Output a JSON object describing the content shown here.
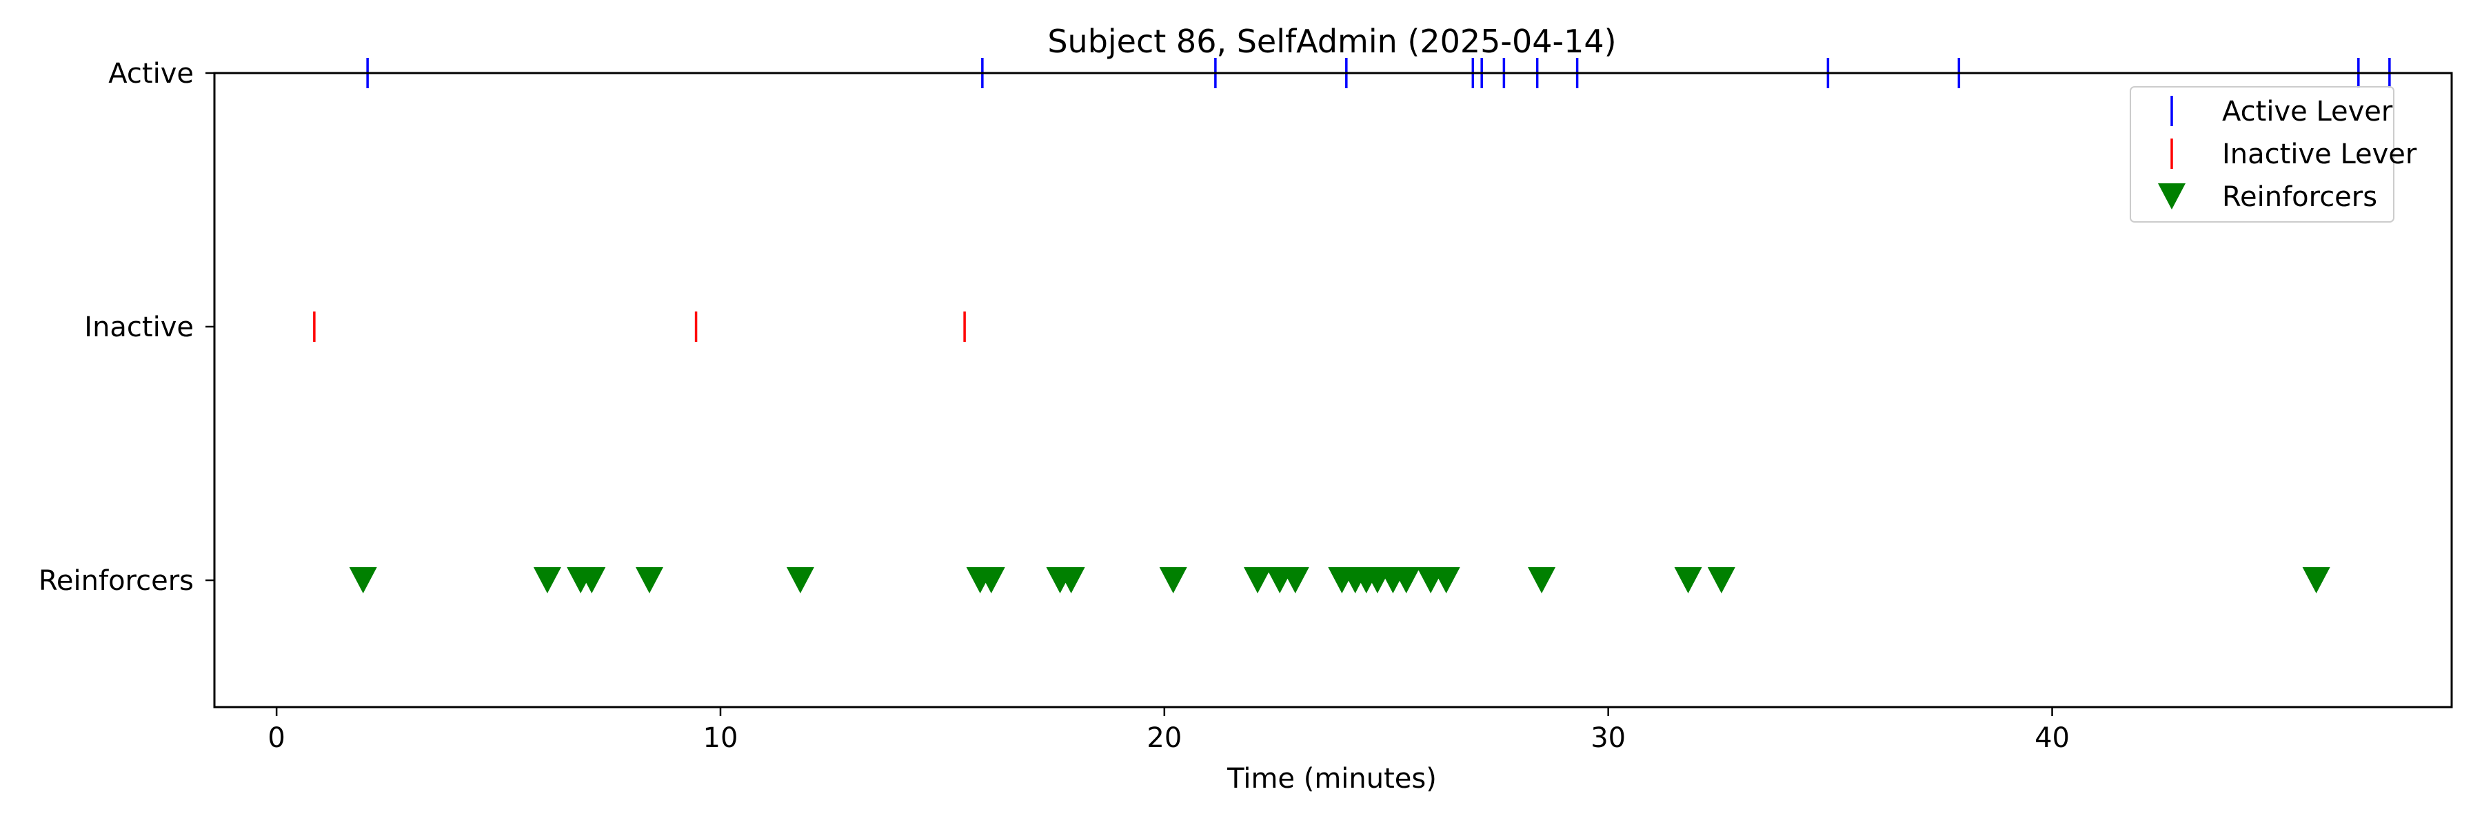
{
  "chart_data": {
    "type": "scatter",
    "title": "Subject 86, SelfAdmin (2025-04-14)",
    "xlabel": "Time (minutes)",
    "ylabel": "",
    "xlim": [
      -1.4,
      49.0
    ],
    "xticks": [
      0,
      10,
      20,
      30,
      40
    ],
    "ylim": [
      -0.5,
      2.0
    ],
    "categories": [
      "Reinforcers",
      "Inactive",
      "Active"
    ],
    "grid": false,
    "legend_position": "top-right",
    "series": [
      {
        "name": "Active Lever",
        "row": "Active",
        "marker": "vline",
        "color": "#0000ff",
        "x": [
          2.05,
          15.9,
          21.15,
          24.1,
          26.95,
          27.15,
          27.65,
          28.4,
          29.3,
          34.95,
          37.9,
          46.9,
          47.6
        ]
      },
      {
        "name": "Inactive Lever",
        "row": "Inactive",
        "marker": "vline",
        "color": "#ff0000",
        "x": [
          0.85,
          9.45,
          15.5
        ]
      },
      {
        "name": "Reinforcers",
        "row": "Reinforcers",
        "marker": "triangle-down",
        "color": "#008000",
        "x": [
          1.95,
          6.1,
          6.85,
          7.1,
          8.4,
          11.8,
          15.85,
          16.1,
          17.65,
          17.9,
          20.2,
          22.1,
          22.6,
          22.95,
          24.0,
          24.3,
          24.55,
          24.8,
          25.15,
          25.45,
          26.0,
          26.35,
          28.5,
          31.8,
          32.55,
          45.95
        ]
      }
    ]
  }
}
